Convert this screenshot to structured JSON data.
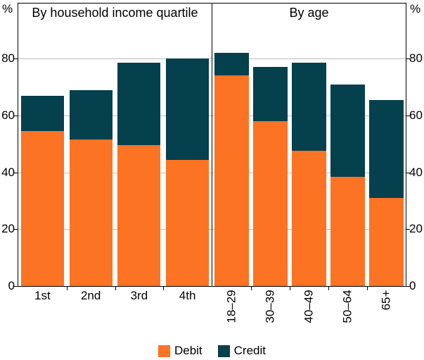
{
  "chart_data": {
    "type": "bar",
    "stacked": true,
    "grid": true,
    "y_axis": {
      "unit_left": "%",
      "unit_right": "%",
      "ticks": [
        0,
        20,
        40,
        60,
        80
      ],
      "range": [
        0,
        100
      ]
    },
    "legend": {
      "position": "bottom",
      "items": [
        {
          "label": "Debit",
          "color": "#FC7323"
        },
        {
          "label": "Credit",
          "color": "#05404D"
        }
      ]
    },
    "panels": [
      {
        "title": "By household income quartile",
        "categories": [
          "1st",
          "2nd",
          "3rd",
          "4th"
        ],
        "category_rotation": 0,
        "series": [
          {
            "name": "Debit",
            "color": "#FC7323",
            "values": [
              54.5,
              51.5,
              49.5,
              44.5
            ]
          },
          {
            "name": "Credit",
            "color": "#05404D",
            "values": [
              12.5,
              17.5,
              29,
              35.5
            ]
          }
        ]
      },
      {
        "title": "By age",
        "categories": [
          "18–29",
          "30–39",
          "40–49",
          "50–64",
          "65+"
        ],
        "category_rotation": 90,
        "series": [
          {
            "name": "Debit",
            "color": "#FC7323",
            "values": [
              74,
              58,
              47.5,
              38.5,
              31
            ]
          },
          {
            "name": "Credit",
            "color": "#05404D",
            "values": [
              8,
              19,
              31,
              32.5,
              34.5
            ]
          }
        ]
      }
    ],
    "colors": {
      "debit": "#FC7323",
      "credit": "#05404D",
      "gridline": "#BBBBBB",
      "axis": "#000000",
      "background": "#FFFFFF"
    }
  }
}
